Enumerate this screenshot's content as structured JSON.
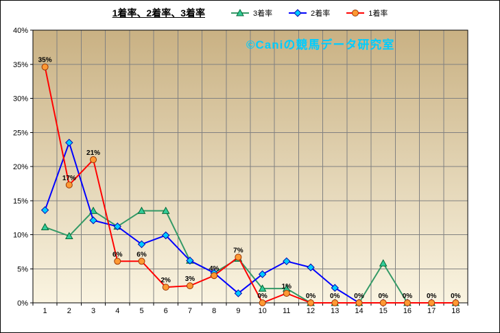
{
  "chart": {
    "title": "1着率、2着率、3着率",
    "watermark": "©Caniの競馬データ研究室",
    "colors": {
      "watermark": "#00CCFF",
      "plot_bg_top": "#C9B183",
      "plot_bg_bottom": "#FAF4E1",
      "gridline": "#808080",
      "axis": "#000000"
    }
  },
  "chart_data": {
    "type": "line",
    "title": "1着率、2着率、3着率",
    "categories": [
      "1",
      "2",
      "3",
      "4",
      "5",
      "6",
      "7",
      "8",
      "9",
      "10",
      "11",
      "12",
      "13",
      "14",
      "15",
      "16",
      "17",
      "18"
    ],
    "xlabel": "",
    "ylabel": "",
    "ylim": [
      0,
      40
    ],
    "ytick_step": 5,
    "ytick_suffix": "%",
    "grid": true,
    "legend_position": "top",
    "series": [
      {
        "id": "rank3",
        "name": "3着率",
        "line_color": "#339966",
        "marker": "triangle",
        "marker_fill": "#33CC99",
        "marker_stroke": "#006633",
        "values": [
          11.1,
          9.8,
          13.5,
          11.2,
          13.5,
          13.5,
          6.2,
          4.4,
          6.5,
          2.1,
          2.1,
          0,
          0,
          0,
          5.8,
          0,
          0,
          0
        ]
      },
      {
        "id": "rank2",
        "name": "2着率",
        "line_color": "#0000FF",
        "marker": "diamond",
        "marker_fill": "#00CCFF",
        "marker_stroke": "#0000B0",
        "values": [
          13.6,
          23.5,
          12.1,
          11.2,
          8.6,
          9.9,
          6.2,
          4.4,
          1.4,
          4.2,
          6.1,
          5.2,
          2.2,
          0,
          0,
          0,
          0,
          0
        ]
      },
      {
        "id": "rank1",
        "name": "1着率",
        "line_color": "#FF0000",
        "marker": "circle",
        "marker_fill": "#FF9933",
        "marker_stroke": "#993300",
        "values": [
          34.6,
          17.3,
          21.0,
          6.1,
          6.1,
          2.3,
          2.5,
          4.0,
          6.7,
          0,
          1.4,
          0,
          0,
          0,
          0,
          0,
          0,
          0
        ],
        "data_labels": [
          "35%",
          "17%",
          "21%",
          "6%",
          "6%",
          "2%",
          "3%",
          "4%",
          "7%",
          "0%",
          "1%",
          "0%",
          "0%",
          "0%",
          "0%",
          "0%",
          "0%",
          "0%"
        ]
      }
    ]
  }
}
